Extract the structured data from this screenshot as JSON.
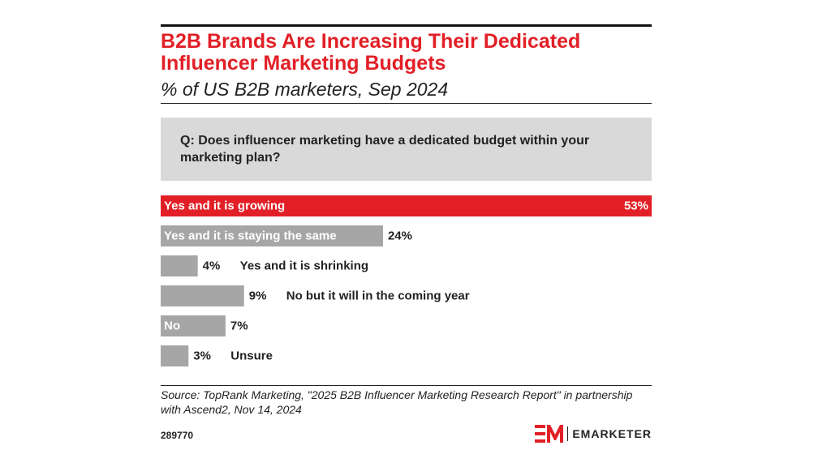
{
  "chart_data": {
    "type": "bar",
    "orientation": "horizontal",
    "title": "B2B Brands Are Increasing Their Dedicated Influencer Marketing Budgets",
    "subtitle": "% of US B2B marketers, Sep 2024",
    "question": "Q: Does influencer marketing have a dedicated budget within your marketing plan?",
    "categories": [
      "Yes and it is growing",
      "Yes and it is staying the same",
      "Yes and it is shrinking",
      "No but it will in the coming year",
      "No",
      "Unsure"
    ],
    "values": [
      53,
      24,
      4,
      9,
      7,
      3
    ],
    "value_labels": [
      "53%",
      "24%",
      "4%",
      "9%",
      "7%",
      "3%"
    ],
    "xlim": [
      0,
      53
    ],
    "highlight_color": "#e21f26",
    "bar_color": "#a6a6a6"
  },
  "source": "Source: TopRank Marketing, \"2025 B2B Influencer Marketing Research Report\" in partnership with Ascend2, Nov 14, 2024",
  "chart_id": "289770",
  "brand": {
    "name": "EMARKETER",
    "logo_icon": "em-logo-icon"
  }
}
